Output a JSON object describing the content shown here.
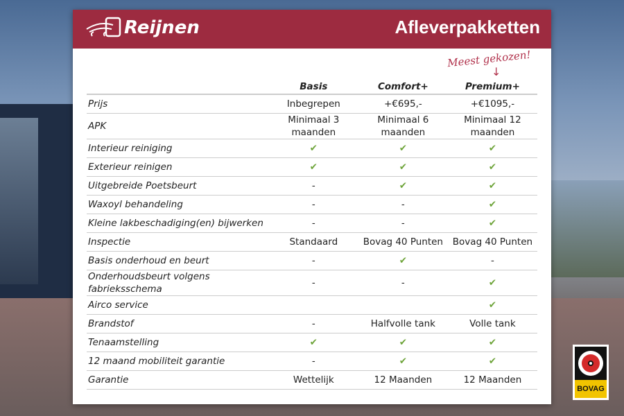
{
  "brand": {
    "logo_text": "Reijnen",
    "title": "Afleverpakketten",
    "tag": "Meest gekozen!",
    "accent": "#9d2b40"
  },
  "columns": [
    "Basis",
    "Comfort+",
    "Premium+"
  ],
  "rows": [
    {
      "label": "Prijs",
      "values": [
        "Inbegrepen",
        "+€695,-",
        "+€1095,-"
      ]
    },
    {
      "label": "APK",
      "values": [
        "Minimaal 3 maanden",
        "Minimaal 6 maanden",
        "Minimaal 12 maanden"
      ]
    },
    {
      "label": "Interieur reiniging",
      "values": [
        "✔",
        "✔",
        "✔"
      ]
    },
    {
      "label": "Exterieur reinigen",
      "values": [
        "✔",
        "✔",
        "✔"
      ]
    },
    {
      "label": "Uitgebreide Poetsbeurt",
      "values": [
        "-",
        "✔",
        "✔"
      ]
    },
    {
      "label": "Waxoyl behandeling",
      "values": [
        "-",
        "-",
        "✔"
      ]
    },
    {
      "label": "Kleine lakbeschadiging(en) bijwerken",
      "values": [
        "-",
        "-",
        "✔"
      ]
    },
    {
      "label": "Inspectie",
      "values": [
        "Standaard",
        "Bovag 40 Punten",
        "Bovag 40 Punten"
      ]
    },
    {
      "label": "Basis onderhoud en beurt",
      "values": [
        "-",
        "✔",
        "-"
      ]
    },
    {
      "label": "Onderhoudsbeurt volgens fabrieksschema",
      "values": [
        "-",
        "-",
        "✔"
      ]
    },
    {
      "label": "Airco service",
      "values": [
        "",
        "",
        "✔"
      ]
    },
    {
      "label": "Brandstof",
      "values": [
        "-",
        "Halfvolle tank",
        "Volle tank"
      ]
    },
    {
      "label": "Tenaamstelling",
      "values": [
        "✔",
        "✔",
        "✔"
      ]
    },
    {
      "label": "12 maand mobiliteit garantie",
      "values": [
        "-",
        "✔",
        "✔"
      ]
    },
    {
      "label": "Garantie",
      "values": [
        "Wettelijk",
        "12 Maanden",
        "12 Maanden"
      ]
    }
  ],
  "badge": {
    "text": "BOVAG"
  }
}
